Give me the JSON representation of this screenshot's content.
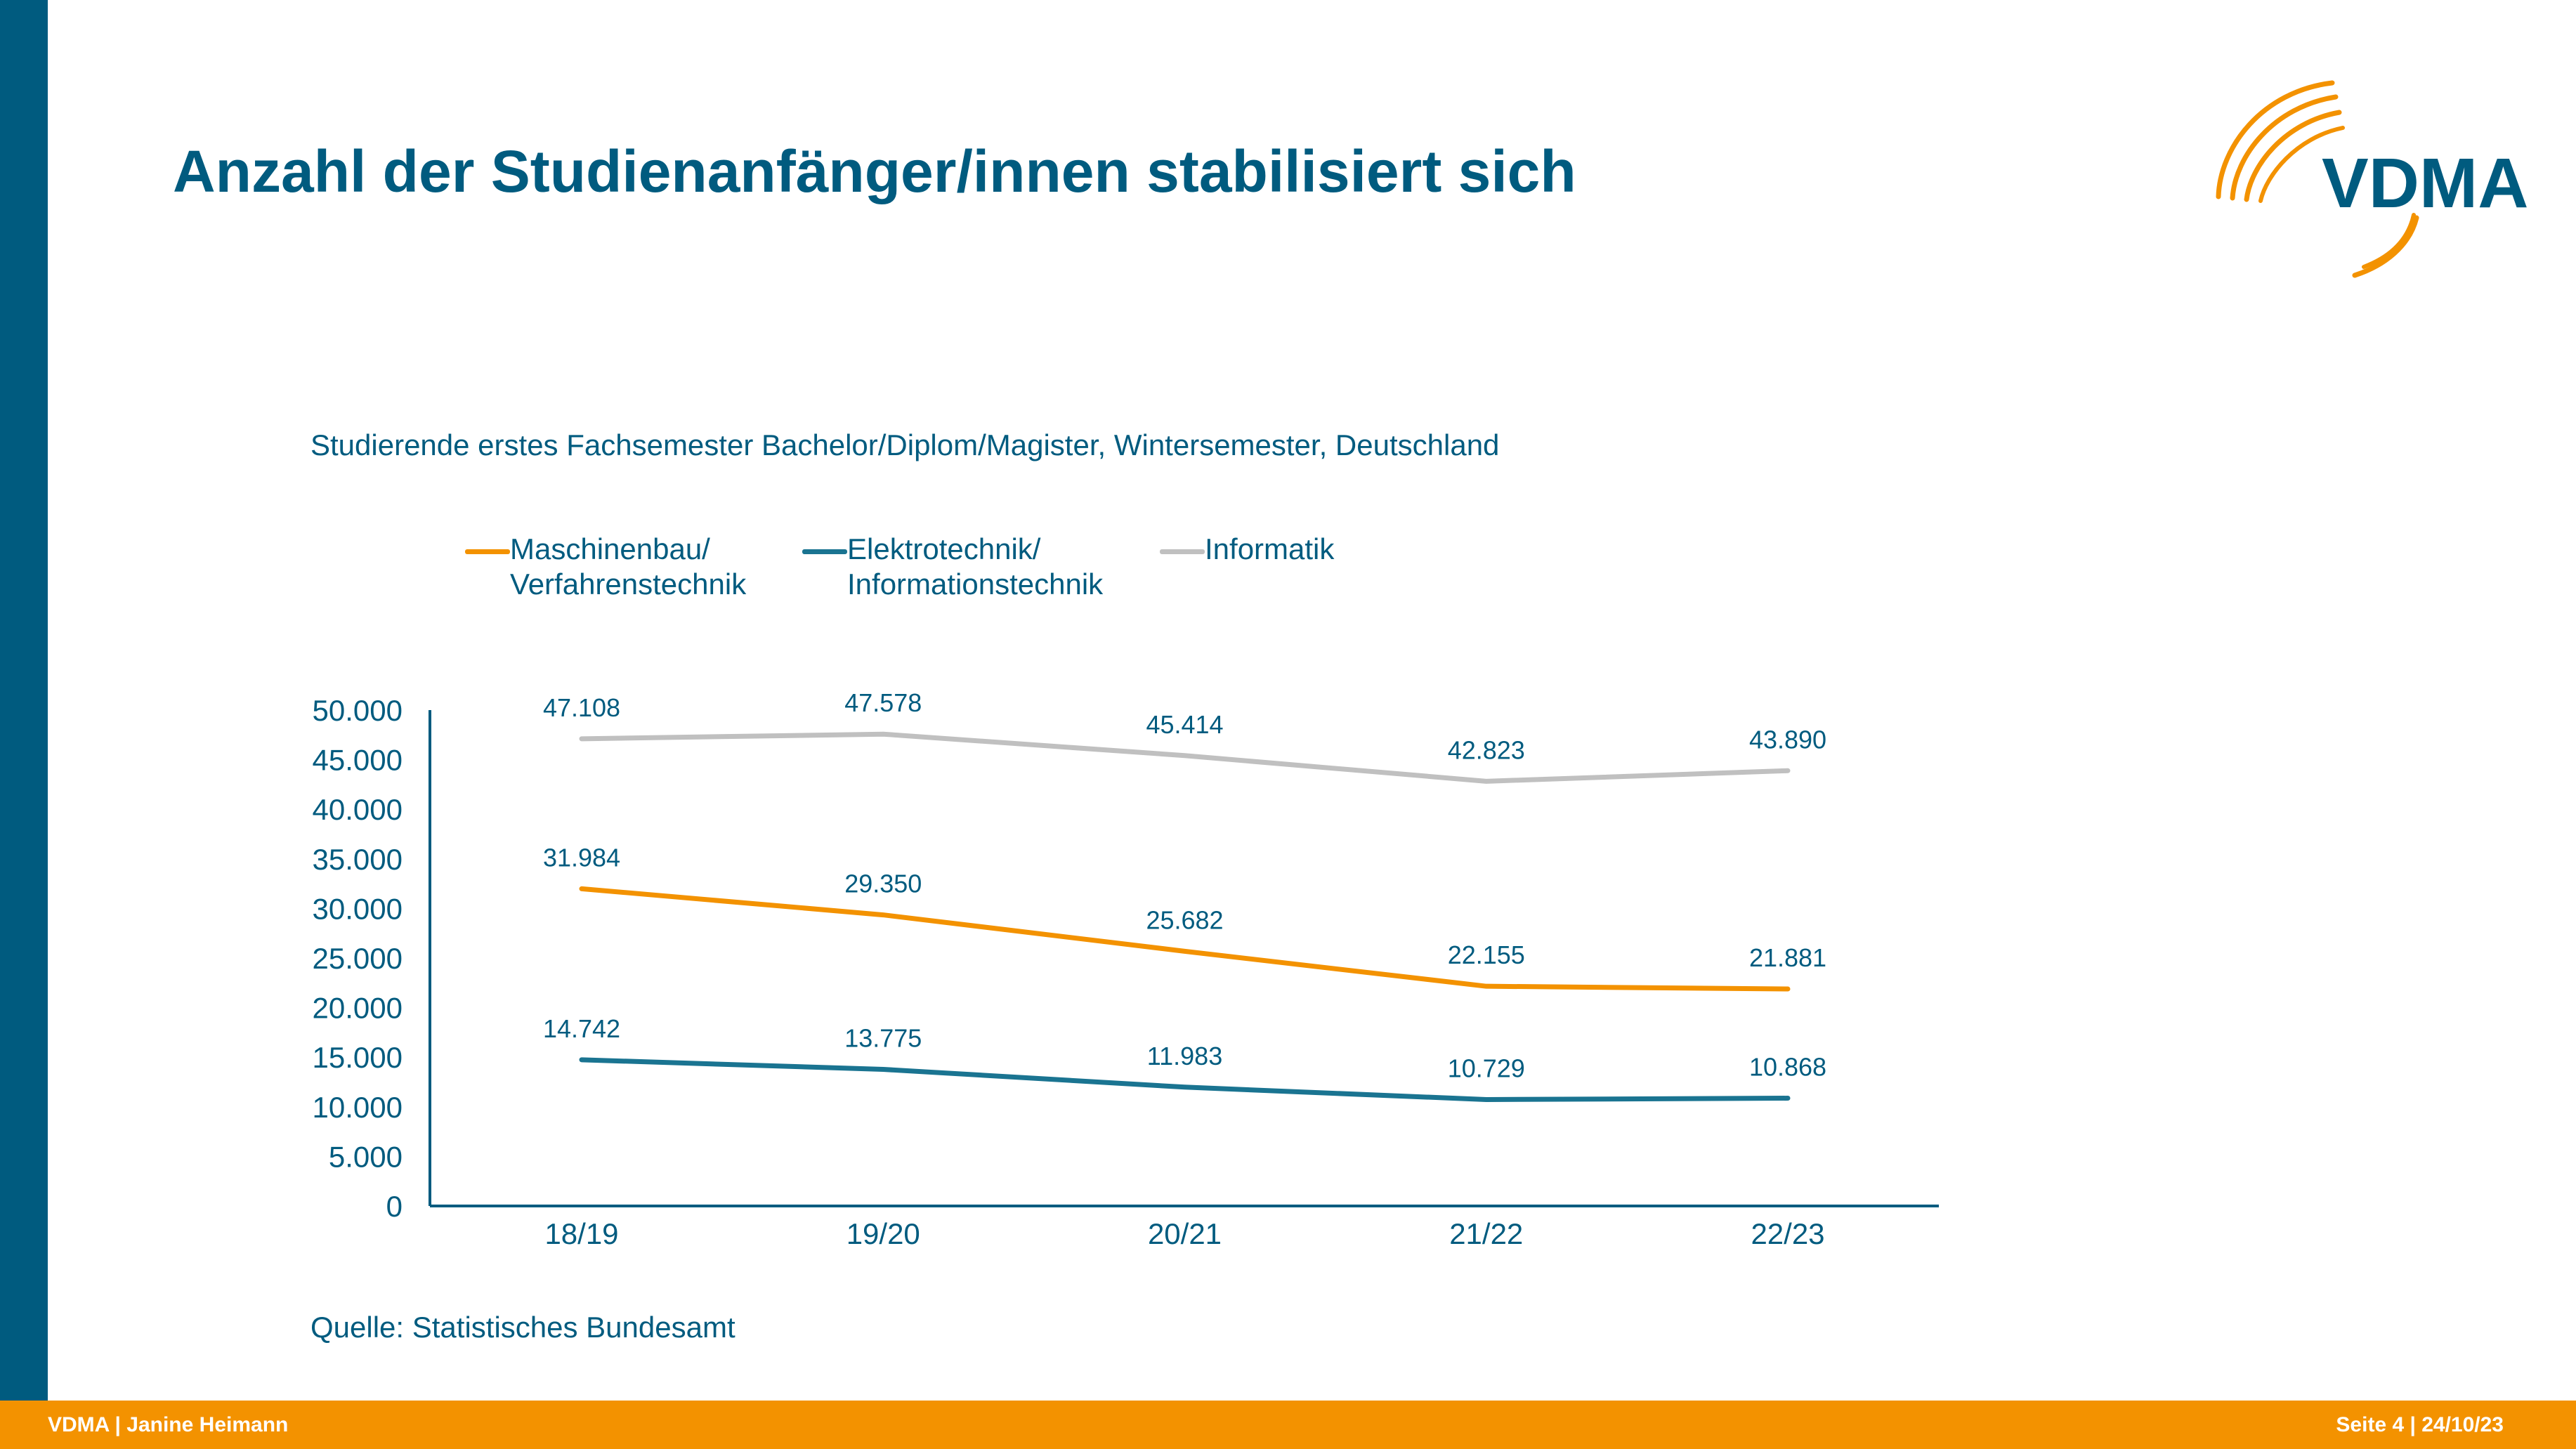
{
  "slide": {
    "title": "Anzahl der Studienanfänger/innen stabilisiert sich",
    "logo_text": "VDMA"
  },
  "footer": {
    "left": "VDMA | Janine Heimann",
    "right": "Seite 4 | 24/10/23"
  },
  "source": "Quelle: Statistisches Bundesamt",
  "colors": {
    "primary": "#005b7f",
    "accent": "#f39200",
    "series_maschinenbau": "#f39200",
    "series_elektrotechnik": "#1a7491",
    "series_informatik": "#c0c0c0"
  },
  "chart_data": {
    "type": "line",
    "title": "Studierende erstes Fachsemester Bachelor/Diplom/Magister, Wintersemester, Deutschland",
    "xlabel": "",
    "ylabel": "",
    "categories": [
      "18/19",
      "19/20",
      "20/21",
      "21/22",
      "22/23"
    ],
    "ylim": [
      0,
      50000
    ],
    "yticks": [
      0,
      5000,
      10000,
      15000,
      20000,
      25000,
      30000,
      35000,
      40000,
      45000,
      50000
    ],
    "ytick_labels": [
      "0",
      "5.000",
      "10.000",
      "15.000",
      "20.000",
      "25.000",
      "30.000",
      "35.000",
      "40.000",
      "45.000",
      "50.000"
    ],
    "grid": false,
    "legend_position": "top",
    "series": [
      {
        "name": "Maschinenbau/\nVerfahrenstechnik",
        "color": "#f39200",
        "values": [
          31984,
          29350,
          25682,
          22155,
          21881
        ],
        "labels": [
          "31.984",
          "29.350",
          "25.682",
          "22.155",
          "21.881"
        ]
      },
      {
        "name": "Elektrotechnik/\nInformationstechnik",
        "color": "#1a7491",
        "values": [
          14742,
          13775,
          11983,
          10729,
          10868
        ],
        "labels": [
          "14.742",
          "13.775",
          "11.983",
          "10.729",
          "10.868"
        ]
      },
      {
        "name": "Informatik",
        "color": "#c0c0c0",
        "values": [
          47108,
          47578,
          45414,
          42823,
          43890
        ],
        "labels": [
          "47.108",
          "47.578",
          "45.414",
          "42.823",
          "43.890"
        ]
      }
    ]
  }
}
